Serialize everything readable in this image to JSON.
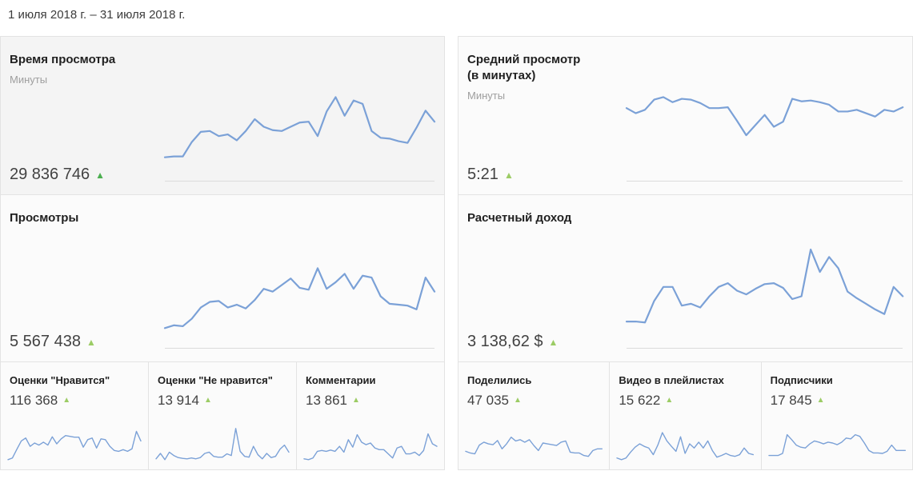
{
  "date_range": "1 июля 2018 г. – 31 июля 2018 г.",
  "colors": {
    "line": "#7ba1d7",
    "up_strong": "#4caf50",
    "up": "#9ccc65"
  },
  "icons": {
    "trend_up": "▲"
  },
  "main_cards": [
    {
      "title": "Время просмотра",
      "title2": "",
      "subtitle": "Минуты",
      "value": "29 836 746",
      "trend": "up",
      "selected": true,
      "series": [
        22,
        23,
        23,
        40,
        52,
        53,
        47,
        49,
        42,
        53,
        67,
        58,
        54,
        53,
        58,
        63,
        64,
        47,
        76,
        93,
        71,
        89,
        85,
        53,
        45,
        44,
        41,
        39,
        57,
        77,
        64
      ]
    },
    {
      "title": "Средний просмотр",
      "title2": "(в минутах)",
      "subtitle": "Минуты",
      "value": "5:21",
      "trend": "up",
      "selected": false,
      "series": [
        80,
        74,
        78,
        90,
        93,
        87,
        91,
        90,
        86,
        80,
        80,
        81,
        65,
        48,
        60,
        72,
        58,
        64,
        91,
        88,
        89,
        87,
        84,
        76,
        76,
        78,
        74,
        70,
        78,
        76,
        81
      ]
    },
    {
      "title": "Просмотры",
      "title2": "",
      "subtitle": "",
      "value": "5 567 438",
      "trend": "up",
      "selected": false,
      "series": [
        16,
        19,
        18,
        26,
        38,
        44,
        45,
        38,
        41,
        37,
        46,
        58,
        55,
        62,
        69,
        59,
        57,
        80,
        58,
        65,
        74,
        58,
        72,
        70,
        50,
        42,
        41,
        40,
        36,
        70,
        55
      ]
    },
    {
      "title": "Расчетный доход",
      "title2": "",
      "subtitle": "",
      "value": "3 138,62 $",
      "trend": "up",
      "selected": false,
      "series": [
        23,
        23,
        22,
        45,
        60,
        60,
        40,
        42,
        38,
        50,
        60,
        64,
        56,
        52,
        58,
        63,
        64,
        59,
        47,
        50,
        100,
        76,
        92,
        80,
        55,
        48,
        42,
        36,
        31,
        60,
        50
      ]
    }
  ],
  "small_cards": [
    {
      "title": "Оценки \"Нравится\"",
      "value": "116 368",
      "trend": "up",
      "series": [
        10,
        14,
        35,
        55,
        62,
        42,
        50,
        45,
        52,
        45,
        65,
        48,
        60,
        68,
        66,
        64,
        64,
        40,
        58,
        62,
        38,
        60,
        58,
        42,
        32,
        30,
        34,
        30,
        36,
        78,
        55
      ]
    },
    {
      "title": "Оценки \"Не нравится\"",
      "value": "13 914",
      "trend": "up",
      "series": [
        12,
        25,
        10,
        28,
        20,
        15,
        13,
        12,
        14,
        12,
        15,
        25,
        28,
        18,
        16,
        16,
        24,
        20,
        85,
        30,
        18,
        16,
        42,
        22,
        12,
        25,
        15,
        18,
        35,
        45,
        28
      ]
    },
    {
      "title": "Комментарии",
      "value": "13 861",
      "trend": "up",
      "series": [
        12,
        10,
        14,
        30,
        32,
        30,
        33,
        30,
        42,
        28,
        58,
        40,
        70,
        52,
        46,
        50,
        38,
        34,
        34,
        24,
        14,
        38,
        42,
        24,
        24,
        28,
        20,
        32,
        72,
        48,
        42
      ]
    },
    {
      "title": "Поделились",
      "value": "47 035",
      "trend": "up",
      "series": [
        30,
        26,
        24,
        45,
        52,
        48,
        46,
        56,
        36,
        48,
        64,
        55,
        58,
        52,
        58,
        44,
        32,
        50,
        48,
        46,
        44,
        52,
        55,
        28,
        26,
        26,
        20,
        18,
        32,
        36,
        36
      ]
    },
    {
      "title": "Видео в плейлистах",
      "value": "15 622",
      "trend": "up",
      "series": [
        14,
        10,
        14,
        28,
        40,
        48,
        42,
        38,
        22,
        45,
        75,
        55,
        42,
        30,
        65,
        25,
        48,
        38,
        52,
        38,
        55,
        32,
        16,
        20,
        25,
        20,
        18,
        22,
        38,
        25,
        22
      ]
    },
    {
      "title": "Подписчики",
      "value": "17 845",
      "trend": "up",
      "series": [
        20,
        20,
        20,
        25,
        70,
        58,
        45,
        40,
        38,
        48,
        55,
        52,
        48,
        52,
        50,
        46,
        52,
        62,
        60,
        70,
        66,
        50,
        32,
        26,
        26,
        25,
        30,
        45,
        32,
        32,
        32
      ]
    }
  ]
}
